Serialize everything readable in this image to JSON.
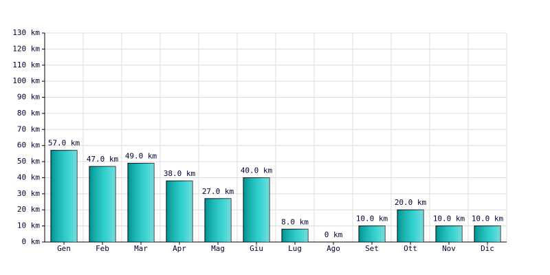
{
  "chart_data": {
    "type": "bar",
    "categories": [
      "Gen",
      "Feb",
      "Mar",
      "Apr",
      "Mag",
      "Giu",
      "Lug",
      "Ago",
      "Set",
      "Ott",
      "Nov",
      "Dic"
    ],
    "values": [
      57,
      47,
      49,
      38,
      27,
      40,
      8,
      0,
      10,
      20,
      10,
      10
    ],
    "value_labels": [
      "57.0 km",
      "47.0 km",
      "49.0 km",
      "38.0 km",
      "27.0 km",
      "40.0 km",
      "8.0 km",
      "0 km",
      "10.0 km",
      "20.0 km",
      "10.0 km",
      "10.0 km"
    ],
    "color": "#00c4c4",
    "ylim": [
      0,
      130
    ],
    "yticks": [
      {
        "value": 0,
        "label": "0 km"
      },
      {
        "value": 10,
        "label": "10 km"
      },
      {
        "value": 20,
        "label": "20 km"
      },
      {
        "value": 30,
        "label": "30 km"
      },
      {
        "value": 40,
        "label": "40 km"
      },
      {
        "value": 50,
        "label": "50 km"
      },
      {
        "value": 60,
        "label": "60 km"
      },
      {
        "value": 70,
        "label": "70 km"
      },
      {
        "value": 80,
        "label": "80 km"
      },
      {
        "value": 90,
        "label": "90 km"
      },
      {
        "value": 100,
        "label": "100 km"
      },
      {
        "value": 110,
        "label": "110 km"
      },
      {
        "value": 120,
        "label": "120 km"
      },
      {
        "value": 130,
        "label": "130 km"
      }
    ],
    "grid": true
  }
}
